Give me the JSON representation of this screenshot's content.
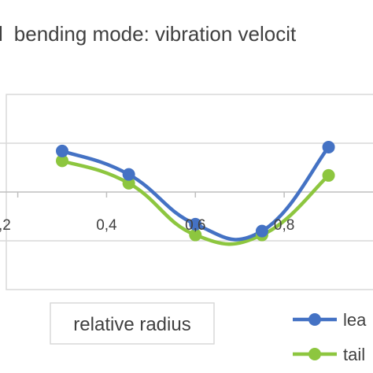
{
  "chart_data": {
    "type": "line",
    "title": "bending mode: vibration velocit",
    "title_prefix_glyph": "l",
    "xlabel": "relative radius",
    "ylabel": "",
    "x_tick_labels": [
      ",2",
      "0,4",
      "0,6",
      "0,8"
    ],
    "x_ticks": [
      0.2,
      0.4,
      0.6,
      0.8
    ],
    "xlim": [
      0.16,
      1.0
    ],
    "ylim": [
      -1.0,
      1.0
    ],
    "grid": false,
    "legend_position": "bottom-right",
    "series": [
      {
        "name": "lea",
        "color": "#4472C4",
        "x": [
          0.3,
          0.45,
          0.6,
          0.75,
          0.9
        ],
        "y": [
          0.42,
          0.18,
          -0.33,
          -0.4,
          0.46
        ]
      },
      {
        "name": "tail",
        "color": "#8DC63F",
        "x": [
          0.3,
          0.45,
          0.6,
          0.75,
          0.9
        ],
        "y": [
          0.32,
          0.09,
          -0.44,
          -0.44,
          0.17
        ]
      }
    ]
  }
}
